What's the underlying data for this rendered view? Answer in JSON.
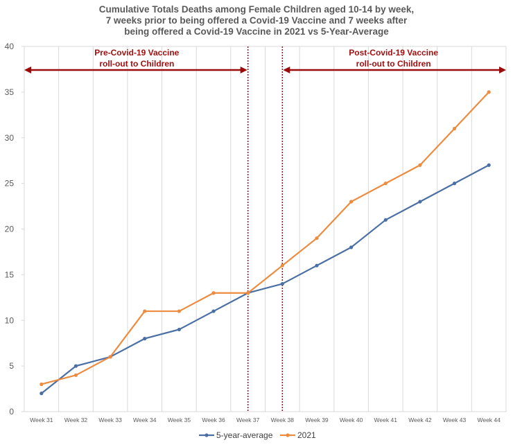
{
  "chart_data": {
    "type": "line",
    "title_lines": [
      "Cumulative Totals Deaths among Female Children aged 10-14 by week,",
      "7 weeks prior to being offered a Covid-19 Vaccine and 7 weeks after",
      "being offered a Covid-19 Vaccine in 2021 vs 5-Year-Average"
    ],
    "categories": [
      "Week 31",
      "Week 32",
      "Week 33",
      "Week 34",
      "Week 35",
      "Week 36",
      "Week 37",
      "Week 38",
      "Week 39",
      "Week 40",
      "Week 41",
      "Week 42",
      "Week 43",
      "Week 44"
    ],
    "series": [
      {
        "name": "5-year-average",
        "color": "#4a6fa5",
        "values": [
          2,
          5,
          6,
          8,
          9,
          11,
          13,
          14,
          16,
          18,
          21,
          23,
          25,
          27
        ]
      },
      {
        "name": "2021",
        "color": "#ed8b3f",
        "values": [
          3,
          4,
          6,
          11,
          11,
          13,
          13,
          16,
          19,
          23,
          25,
          27,
          31,
          35
        ]
      }
    ],
    "ylim": [
      0,
      40
    ],
    "yticks": [
      0,
      5,
      10,
      15,
      20,
      25,
      30,
      35,
      40
    ],
    "grid": "vertical",
    "legend_position": "bottom",
    "annotations": {
      "pre": {
        "lines": [
          "Pre-Covid-19 Vaccine",
          "roll-out to Children"
        ],
        "color": "#a01010"
      },
      "post": {
        "lines": [
          "Post-Covid-19 Vaccine",
          "roll-out to Children"
        ],
        "color": "#a01010"
      }
    }
  }
}
